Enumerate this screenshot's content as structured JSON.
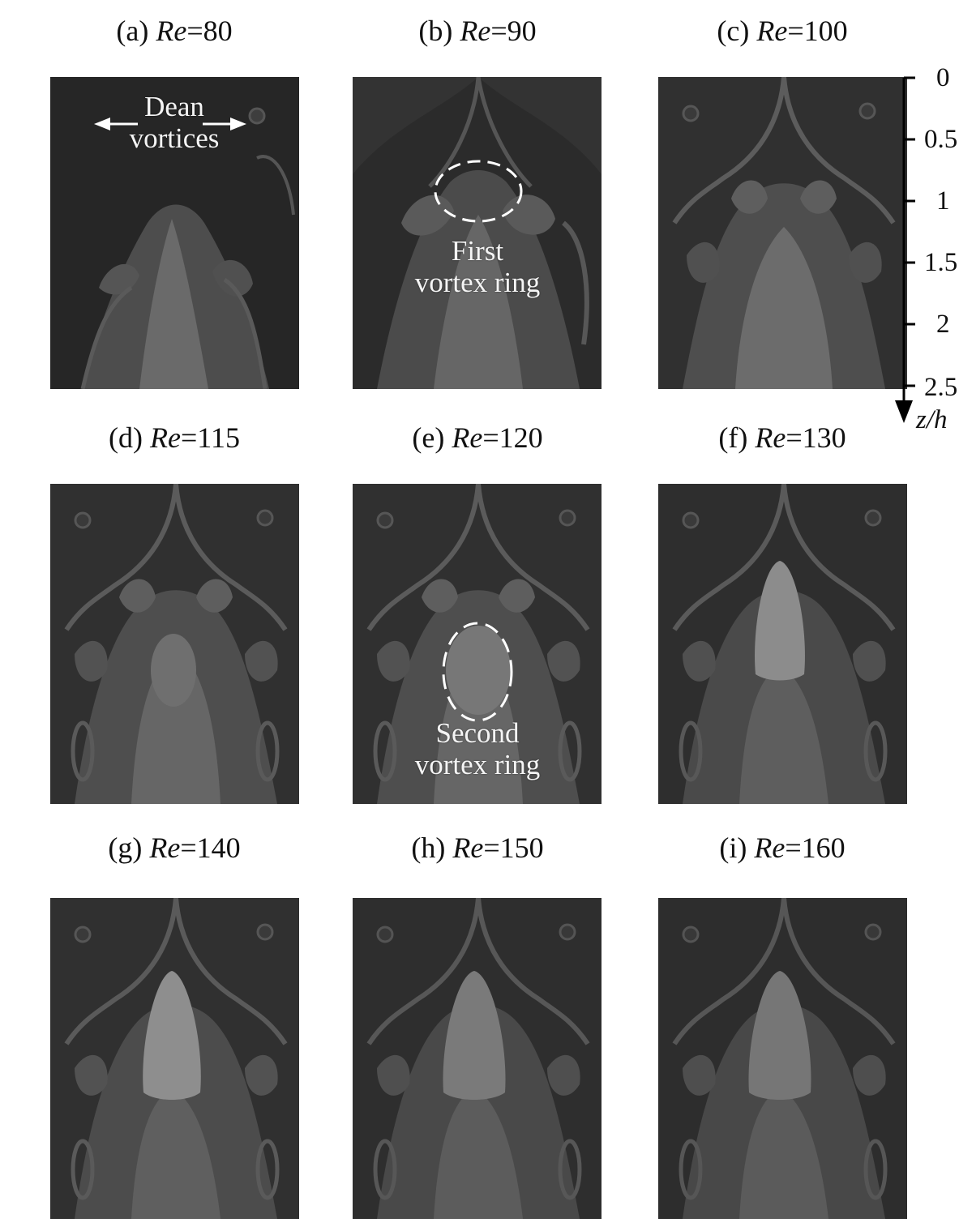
{
  "panels": [
    {
      "prefix": "(a) ",
      "var": "Re",
      "value": "=80"
    },
    {
      "prefix": "(b) ",
      "var": "Re",
      "value": "=90"
    },
    {
      "prefix": "(c) ",
      "var": "Re",
      "value": "=100"
    },
    {
      "prefix": "(d) ",
      "var": "Re",
      "value": "=115"
    },
    {
      "prefix": "(e) ",
      "var": "Re",
      "value": "=120"
    },
    {
      "prefix": "(f) ",
      "var": "Re",
      "value": "=130"
    },
    {
      "prefix": "(g) ",
      "var": "Re",
      "value": "=140"
    },
    {
      "prefix": "(h) ",
      "var": "Re",
      "value": "=150"
    },
    {
      "prefix": "(i) ",
      "var": "Re",
      "value": "=160"
    }
  ],
  "annotations": {
    "dean_line1": "Dean",
    "dean_line2": "vortices",
    "first_line1": "First",
    "first_line2": "vortex ring",
    "second_line1": "Second",
    "second_line2": "vortex ring"
  },
  "axis": {
    "title": "z/h",
    "ticks": [
      "0",
      "0.5",
      "1",
      "1.5",
      "2",
      "2.5"
    ]
  }
}
